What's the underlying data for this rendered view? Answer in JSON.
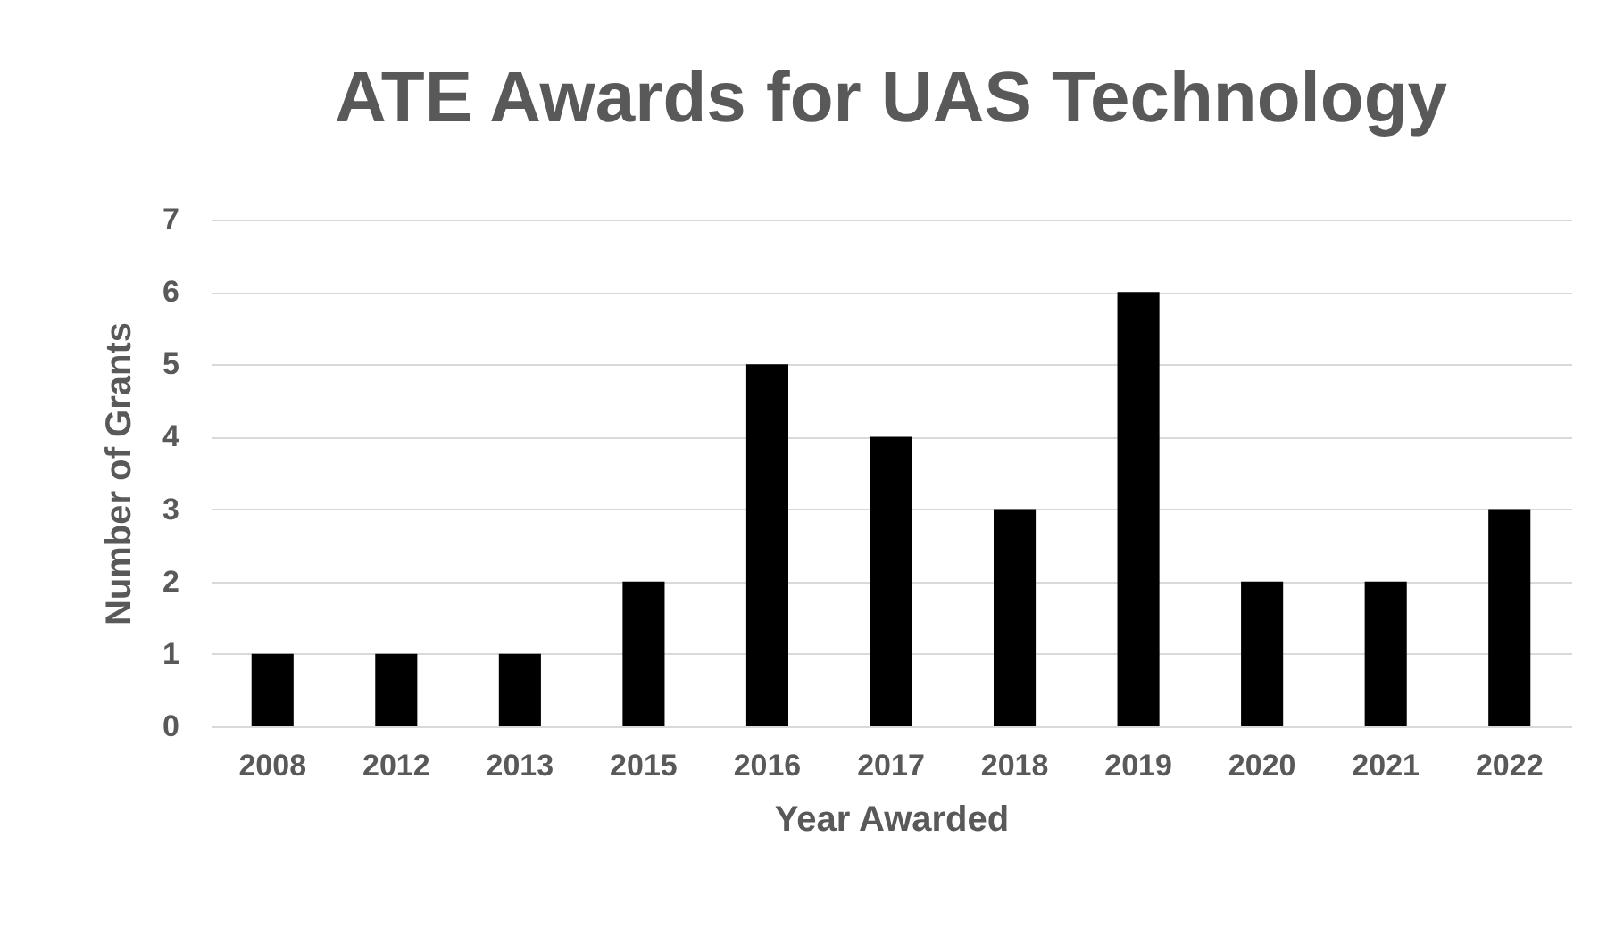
{
  "chart_data": {
    "type": "bar",
    "title": "ATE Awards for UAS Technology",
    "xlabel": "Year Awarded",
    "ylabel": "Number of Grants",
    "categories": [
      "2008",
      "2012",
      "2013",
      "2015",
      "2016",
      "2017",
      "2018",
      "2019",
      "2020",
      "2021",
      "2022"
    ],
    "values": [
      1,
      1,
      1,
      2,
      5,
      4,
      3,
      6,
      2,
      2,
      3
    ],
    "color": "#000000",
    "ylim": [
      0,
      7
    ],
    "yticks": [
      0,
      1,
      2,
      3,
      4,
      5,
      6,
      7
    ],
    "grid": "y"
  }
}
